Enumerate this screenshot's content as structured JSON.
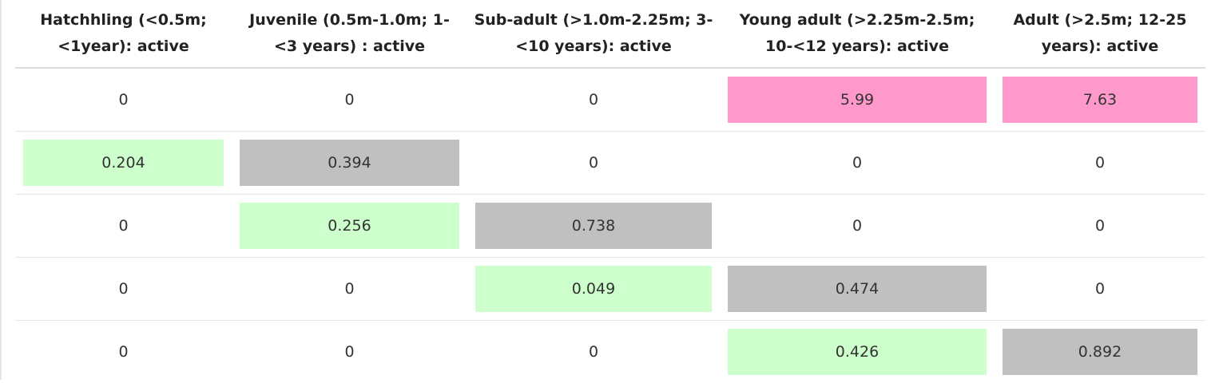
{
  "colors": {
    "green": "#ccffcc",
    "gray": "#c0c0c0",
    "pink": "#ff99cc"
  },
  "headers": [
    "Hatchhling (<0.5m; <1year): active",
    "Juvenile (0.5m-1.0m; 1-<3 years) : active",
    "Sub-adult (>1.0m-2.25m; 3-<10 years): active",
    "Young adult (>2.25m-2.5m; 10-<12 years): active",
    "Adult (>2.5m; 12-25 years): active"
  ],
  "rows": [
    [
      {
        "value": "0",
        "fill": "none"
      },
      {
        "value": "0",
        "fill": "none"
      },
      {
        "value": "0",
        "fill": "none"
      },
      {
        "value": "5.99",
        "fill": "pink"
      },
      {
        "value": "7.63",
        "fill": "pink"
      }
    ],
    [
      {
        "value": "0.204",
        "fill": "green"
      },
      {
        "value": "0.394",
        "fill": "gray"
      },
      {
        "value": "0",
        "fill": "none"
      },
      {
        "value": "0",
        "fill": "none"
      },
      {
        "value": "0",
        "fill": "none"
      }
    ],
    [
      {
        "value": "0",
        "fill": "none"
      },
      {
        "value": "0.256",
        "fill": "green"
      },
      {
        "value": "0.738",
        "fill": "gray"
      },
      {
        "value": "0",
        "fill": "none"
      },
      {
        "value": "0",
        "fill": "none"
      }
    ],
    [
      {
        "value": "0",
        "fill": "none"
      },
      {
        "value": "0",
        "fill": "none"
      },
      {
        "value": "0.049",
        "fill": "green"
      },
      {
        "value": "0.474",
        "fill": "gray"
      },
      {
        "value": "0",
        "fill": "none"
      }
    ],
    [
      {
        "value": "0",
        "fill": "none"
      },
      {
        "value": "0",
        "fill": "none"
      },
      {
        "value": "0",
        "fill": "none"
      },
      {
        "value": "0.426",
        "fill": "green"
      },
      {
        "value": "0.892",
        "fill": "gray"
      }
    ]
  ]
}
